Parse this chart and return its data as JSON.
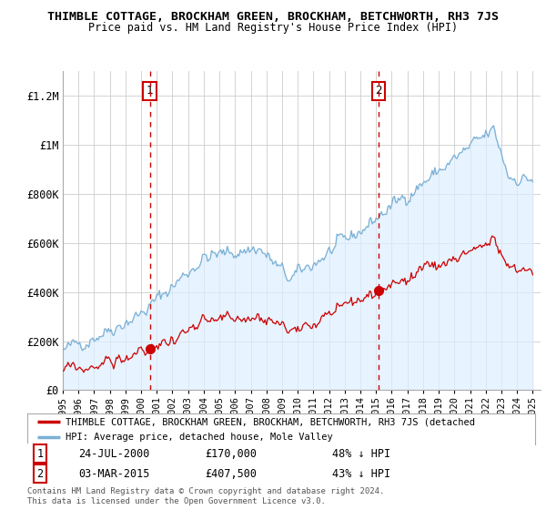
{
  "title": "THIMBLE COTTAGE, BROCKHAM GREEN, BROCKHAM, BETCHWORTH, RH3 7JS",
  "subtitle": "Price paid vs. HM Land Registry's House Price Index (HPI)",
  "ylabel_ticks": [
    0,
    200000,
    400000,
    600000,
    800000,
    1000000,
    1200000
  ],
  "ylabel_labels": [
    "£0",
    "£200K",
    "£400K",
    "£600K",
    "£800K",
    "£1M",
    "£1.2M"
  ],
  "ylim": [
    0,
    1300000
  ],
  "sale1_x": 2000.56,
  "sale1_price": 170000,
  "sale1_date_str": "24-JUL-2000",
  "sale1_amount": "£170,000",
  "sale1_hpi_diff": "48% ↓ HPI",
  "sale2_x": 2015.17,
  "sale2_price": 407500,
  "sale2_date_str": "03-MAR-2015",
  "sale2_amount": "£407,500",
  "sale2_hpi_diff": "43% ↓ HPI",
  "legend_line1": "THIMBLE COTTAGE, BROCKHAM GREEN, BROCKHAM, BETCHWORTH, RH3 7JS (detached",
  "legend_line2": "HPI: Average price, detached house, Mole Valley",
  "footer": "Contains HM Land Registry data © Crown copyright and database right 2024.\nThis data is licensed under the Open Government Licence v3.0.",
  "red_color": "#cc0000",
  "blue_color": "#7ab0d4",
  "blue_fill": "#ddeeff",
  "bg_color": "#ffffff",
  "grid_color": "#cccccc"
}
